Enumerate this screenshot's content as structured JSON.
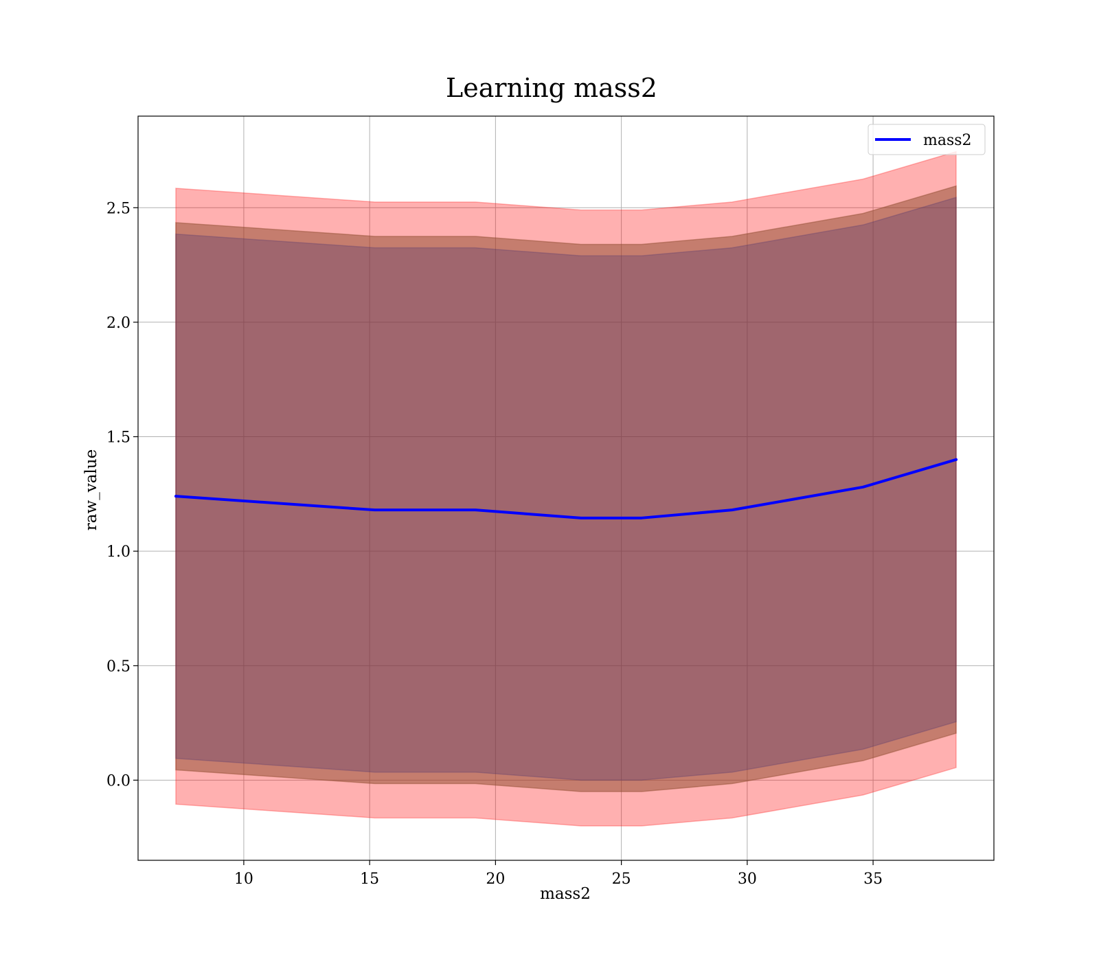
{
  "chart_data": {
    "type": "area",
    "title": "Learning mass2",
    "xlabel": "mass2",
    "ylabel": "raw_value",
    "xlim": [
      5.8,
      39.8
    ],
    "ylim": [
      -0.35,
      2.9
    ],
    "xticks": [
      10,
      15,
      20,
      25,
      30,
      35
    ],
    "yticks": [
      0.0,
      0.5,
      1.0,
      1.5,
      2.0,
      2.5
    ],
    "grid": true,
    "legend": {
      "placement": "top-right",
      "entries": [
        "mass2"
      ]
    },
    "x": [
      7.3,
      15.2,
      19.2,
      23.4,
      25.8,
      29.4,
      34.6,
      38.3
    ],
    "series": [
      {
        "name": "mass2",
        "color": "#0000ff",
        "values": [
          1.24,
          1.18,
          1.18,
          1.145,
          1.145,
          1.18,
          1.28,
          1.4
        ]
      }
    ],
    "bands": [
      {
        "color": "#ff0000",
        "opacity": 0.31,
        "lower": [
          -0.105,
          -0.165,
          -0.165,
          -0.2,
          -0.2,
          -0.165,
          -0.065,
          0.055
        ],
        "upper": [
          2.585,
          2.525,
          2.525,
          2.49,
          2.49,
          2.525,
          2.625,
          2.745
        ]
      },
      {
        "color": "#8c4a2c",
        "opacity": 0.5,
        "lower": [
          0.045,
          -0.015,
          -0.015,
          -0.05,
          -0.05,
          -0.015,
          0.085,
          0.205
        ],
        "upper": [
          2.435,
          2.375,
          2.375,
          2.34,
          2.34,
          2.375,
          2.475,
          2.595
        ]
      },
      {
        "color": "#3f2a6e",
        "opacity": 0.28,
        "lower": [
          0.095,
          0.035,
          0.035,
          0.0,
          0.0,
          0.035,
          0.135,
          0.255
        ],
        "upper": [
          2.385,
          2.325,
          2.325,
          2.29,
          2.29,
          2.325,
          2.425,
          2.545
        ]
      }
    ]
  }
}
